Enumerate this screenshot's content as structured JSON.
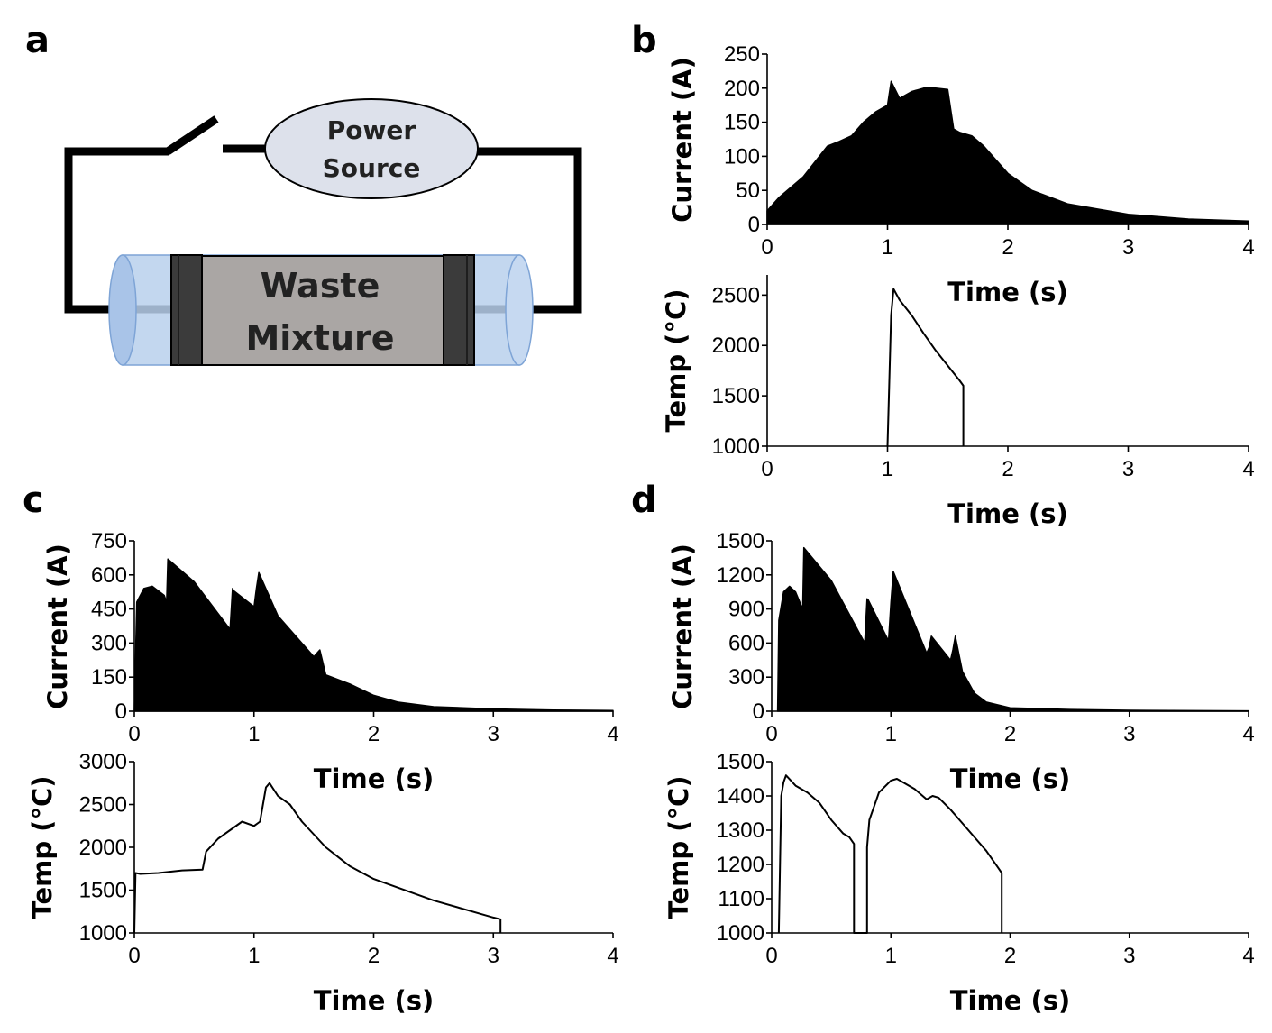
{
  "panel_labels": {
    "a": "a",
    "b": "b",
    "c": "c",
    "d": "d"
  },
  "diagram": {
    "power_source": [
      "Power",
      "Source"
    ],
    "waste_mixture": [
      "Waste",
      "Mixture"
    ]
  },
  "chart_data": [
    {
      "id": "b-current",
      "type": "area",
      "ylabel": "Current (A)",
      "xlabel": "Time (s)",
      "xlim": [
        0,
        4
      ],
      "ylim": [
        0,
        250
      ],
      "xticks": [
        0,
        1,
        2,
        3,
        4
      ],
      "yticks": [
        0,
        50,
        100,
        150,
        200,
        250
      ],
      "x": [
        0,
        0.05,
        0.1,
        0.3,
        0.5,
        0.6,
        0.7,
        0.8,
        0.9,
        1.0,
        1.03,
        1.1,
        1.2,
        1.3,
        1.4,
        1.5,
        1.55,
        1.6,
        1.7,
        1.8,
        1.9,
        2.0,
        2.2,
        2.5,
        3.0,
        3.5,
        4.0
      ],
      "y": [
        20,
        30,
        40,
        70,
        115,
        122,
        130,
        150,
        165,
        175,
        210,
        185,
        195,
        200,
        200,
        198,
        140,
        135,
        130,
        115,
        95,
        75,
        50,
        30,
        15,
        8,
        5
      ]
    },
    {
      "id": "b-temp",
      "type": "line",
      "ylabel": "Temp (°C)",
      "xlabel": "Time (s)",
      "xlim": [
        0,
        4
      ],
      "ylim": [
        1000,
        2700
      ],
      "xticks": [
        0,
        1,
        2,
        3,
        4
      ],
      "yticks": [
        1000,
        1500,
        2000,
        2500
      ],
      "x": [
        1.0,
        1.03,
        1.05,
        1.1,
        1.2,
        1.3,
        1.4,
        1.5,
        1.6,
        1.63,
        1.63
      ],
      "y": [
        1000,
        2300,
        2560,
        2450,
        2300,
        2120,
        1950,
        1800,
        1650,
        1600,
        1000
      ]
    },
    {
      "id": "c-current",
      "type": "area",
      "ylabel": "Current (A)",
      "xlabel": "Time (s)",
      "xlim": [
        0,
        4
      ],
      "ylim": [
        0,
        750
      ],
      "xticks": [
        0,
        1,
        2,
        3,
        4
      ],
      "yticks": [
        0,
        150,
        300,
        450,
        600,
        750
      ],
      "x": [
        0,
        0.02,
        0.08,
        0.15,
        0.25,
        0.27,
        0.28,
        0.5,
        0.8,
        0.82,
        0.83,
        1.0,
        1.02,
        1.04,
        1.2,
        1.5,
        1.55,
        1.6,
        1.8,
        2.0,
        2.2,
        2.5,
        3.0,
        3.5,
        4.0
      ],
      "y": [
        0,
        480,
        540,
        550,
        510,
        480,
        670,
        570,
        360,
        540,
        530,
        460,
        540,
        610,
        420,
        240,
        270,
        160,
        120,
        70,
        40,
        20,
        10,
        5,
        3
      ]
    },
    {
      "id": "c-temp",
      "type": "line",
      "ylabel": "Temp (°C)",
      "xlabel": "Time (s)",
      "xlim": [
        0,
        4
      ],
      "ylim": [
        1000,
        3000
      ],
      "xticks": [
        0,
        1,
        2,
        3,
        4
      ],
      "yticks": [
        1000,
        1500,
        2000,
        2500,
        3000
      ],
      "x": [
        0,
        0.01,
        0.05,
        0.2,
        0.4,
        0.57,
        0.6,
        0.7,
        0.8,
        0.9,
        1.0,
        1.05,
        1.1,
        1.13,
        1.2,
        1.3,
        1.4,
        1.6,
        1.8,
        2.0,
        2.5,
        3.0,
        3.06,
        3.06
      ],
      "y": [
        1000,
        1700,
        1690,
        1700,
        1730,
        1740,
        1950,
        2100,
        2200,
        2300,
        2250,
        2300,
        2700,
        2750,
        2600,
        2500,
        2300,
        2000,
        1780,
        1630,
        1380,
        1180,
        1160,
        1000
      ]
    },
    {
      "id": "d-current",
      "type": "area",
      "ylabel": "Current (A)",
      "xlabel": "Time (s)",
      "xlim": [
        0,
        4
      ],
      "ylim": [
        0,
        1500
      ],
      "xticks": [
        0,
        1,
        2,
        3,
        4
      ],
      "yticks": [
        0,
        300,
        600,
        900,
        1200,
        1500
      ],
      "x": [
        0.05,
        0.06,
        0.1,
        0.15,
        0.2,
        0.24,
        0.26,
        0.27,
        0.5,
        0.78,
        0.8,
        0.81,
        0.98,
        1.0,
        1.02,
        1.3,
        1.32,
        1.34,
        1.5,
        1.52,
        1.54,
        1.6,
        1.7,
        1.8,
        2.0,
        2.5,
        3.0,
        4.0
      ],
      "y": [
        0,
        800,
        1050,
        1100,
        1050,
        950,
        900,
        1440,
        1150,
        600,
        990,
        980,
        620,
        960,
        1230,
        510,
        560,
        660,
        450,
        540,
        660,
        350,
        160,
        80,
        30,
        15,
        8,
        3
      ]
    },
    {
      "id": "d-temp",
      "type": "line",
      "ylabel": "Temp (°C)",
      "xlabel": "Time (s)",
      "xlim": [
        0,
        4
      ],
      "ylim": [
        1000,
        1500
      ],
      "xticks": [
        0,
        1,
        2,
        3,
        4
      ],
      "yticks": [
        1000,
        1100,
        1200,
        1300,
        1400,
        1500
      ],
      "x": [
        0.06,
        0.08,
        0.1,
        0.12,
        0.2,
        0.3,
        0.4,
        0.5,
        0.6,
        0.65,
        0.69,
        0.69,
        0.8,
        0.8,
        0.82,
        0.9,
        1.0,
        1.05,
        1.1,
        1.2,
        1.3,
        1.35,
        1.4,
        1.5,
        1.6,
        1.7,
        1.8,
        1.9,
        1.93,
        1.93
      ],
      "y": [
        1000,
        1400,
        1440,
        1460,
        1430,
        1410,
        1380,
        1330,
        1290,
        1280,
        1260,
        1000,
        1000,
        1250,
        1330,
        1410,
        1445,
        1450,
        1440,
        1420,
        1390,
        1400,
        1395,
        1360,
        1320,
        1280,
        1240,
        1190,
        1175,
        1000
      ]
    }
  ]
}
